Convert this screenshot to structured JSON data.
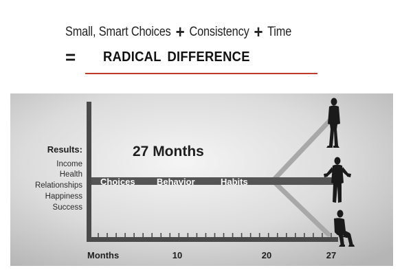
{
  "headline": {
    "part1": "Small, Smart Choices",
    "plus1": "+",
    "part2": "Consistency",
    "plus2": "+",
    "part3": "Time",
    "equals": "=",
    "result": "RADICAL  DIFFERENCE"
  },
  "diagram": {
    "results_label": "Results:",
    "result_items": [
      "Income",
      "Health",
      "Relationships",
      "Happiness",
      "Success"
    ],
    "duration_label": "27 Months",
    "path_words": [
      "Choices",
      "Behavior",
      "Habits"
    ],
    "axis": {
      "label": "Months",
      "ticks": [
        "10",
        "20",
        "27"
      ],
      "minor_tick_count": 27
    },
    "paths": [
      "up",
      "level",
      "down"
    ],
    "colors": {
      "background_light": "#f5f5f5",
      "background_dark": "#b5b5b5",
      "axis": "#4a4a4a",
      "main_path": "#555555",
      "branch_path": "#a8a8a8",
      "figure": "#1a1a1a",
      "rule": "#c0392b"
    }
  }
}
